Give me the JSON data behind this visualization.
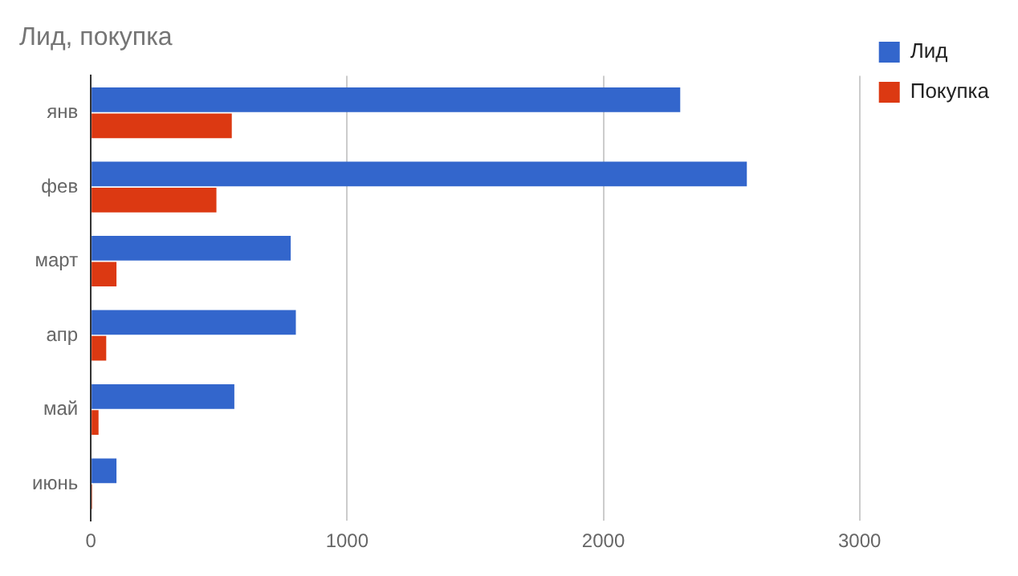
{
  "chart_data": {
    "type": "bar",
    "orientation": "horizontal",
    "title": "Лид, покупка",
    "categories": [
      "янв",
      "фев",
      "март",
      "апр",
      "май",
      "июнь"
    ],
    "series": [
      {
        "name": "Лид",
        "color": "#3366cc",
        "values": [
          2300,
          2560,
          780,
          800,
          560,
          100
        ]
      },
      {
        "name": "Покупка",
        "color": "#dc3912",
        "values": [
          550,
          490,
          100,
          60,
          30,
          5
        ]
      }
    ],
    "xlim": [
      0,
      3000
    ],
    "xticks": [
      0,
      1000,
      2000,
      3000
    ],
    "grid": "x",
    "legend": "top right"
  }
}
